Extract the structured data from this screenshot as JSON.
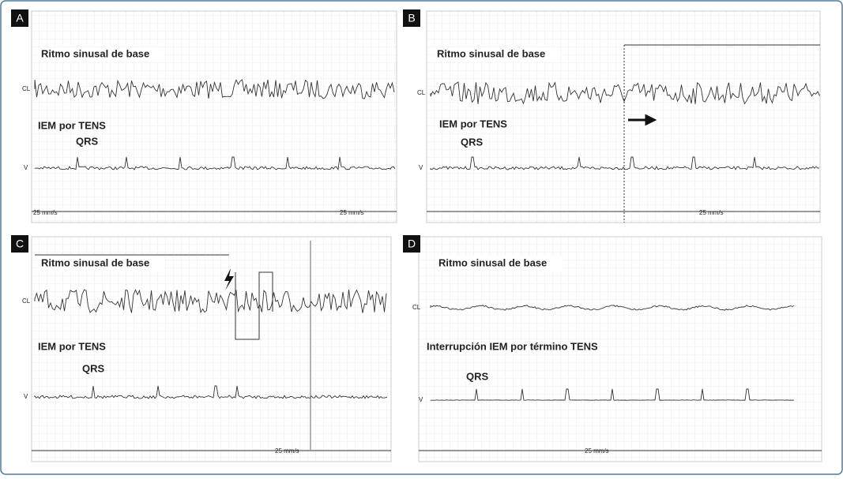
{
  "panels": [
    {
      "label": "A",
      "title": "Ritmo sinusal de base",
      "channels": [
        "CL",
        "V"
      ],
      "event": "IEM  por TENS",
      "qrs": "QRS",
      "speed": [
        "25 mm/s",
        "25 mm/s"
      ]
    },
    {
      "label": "B",
      "title": "Ritmo sinusal de base",
      "channels": [
        "CL",
        "V"
      ],
      "event": "IEM por TENS",
      "qrs": "QRS",
      "speed": [
        "25 mm/s"
      ]
    },
    {
      "label": "C",
      "title": "Ritmo sinusal de base",
      "channels": [
        "CL",
        "V"
      ],
      "event": "IEM por TENS",
      "qrs": "QRS",
      "speed": [
        "25 mm/s"
      ]
    },
    {
      "label": "D",
      "title": "Ritmo sinusal de base",
      "channels": [
        "CL",
        "V"
      ],
      "event": "Interrupción IEM por término TENS",
      "qrs": "QRS",
      "speed": [
        "25 mm/s"
      ]
    }
  ]
}
